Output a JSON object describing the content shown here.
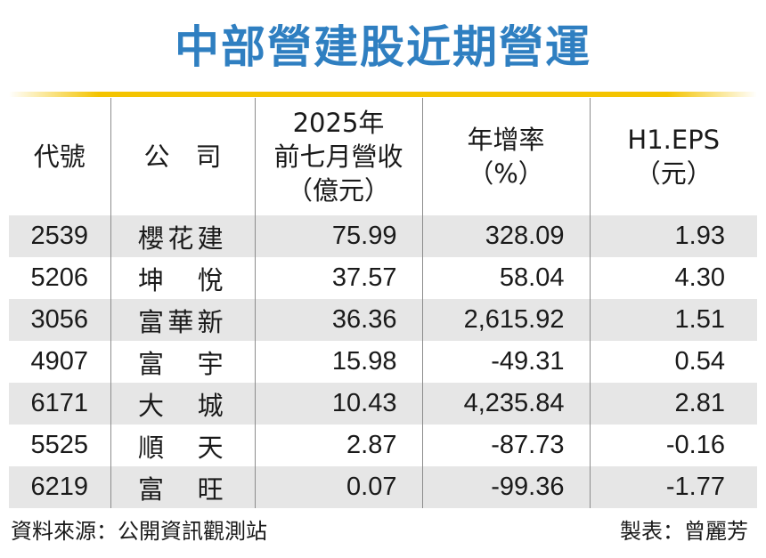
{
  "title": "中部營建股近期營運",
  "headers": {
    "code": "代號",
    "company": "公　司",
    "revenue": [
      "2025年",
      "前七月營收",
      "（億元）"
    ],
    "growth": [
      "年增率",
      "（%）"
    ],
    "eps": [
      "H1.EPS",
      "（元）"
    ]
  },
  "rows": [
    {
      "code": "2539",
      "company": "櫻花建",
      "revenue": "75.99",
      "growth": "328.09",
      "eps": "1.93"
    },
    {
      "code": "5206",
      "company": "坤　悅",
      "revenue": "37.57",
      "growth": "58.04",
      "eps": "4.30"
    },
    {
      "code": "3056",
      "company": "富華新",
      "revenue": "36.36",
      "growth": "2,615.92",
      "eps": "1.51"
    },
    {
      "code": "4907",
      "company": "富　宇",
      "revenue": "15.98",
      "growth": "-49.31",
      "eps": "0.54"
    },
    {
      "code": "6171",
      "company": "大　城",
      "revenue": "10.43",
      "growth": "4,235.84",
      "eps": "2.81"
    },
    {
      "code": "5525",
      "company": "順　天",
      "revenue": "2.87",
      "growth": "-87.73",
      "eps": "-0.16"
    },
    {
      "code": "6219",
      "company": "富　旺",
      "revenue": "0.07",
      "growth": "-99.36",
      "eps": "-1.77"
    }
  ],
  "footer": {
    "source": "資料來源：公開資訊觀測站",
    "credit": "製表：曾麗芳"
  },
  "colors": {
    "title": "#2f7fc1",
    "rule": "#f4c400",
    "stripe": "#e6e6e6"
  }
}
